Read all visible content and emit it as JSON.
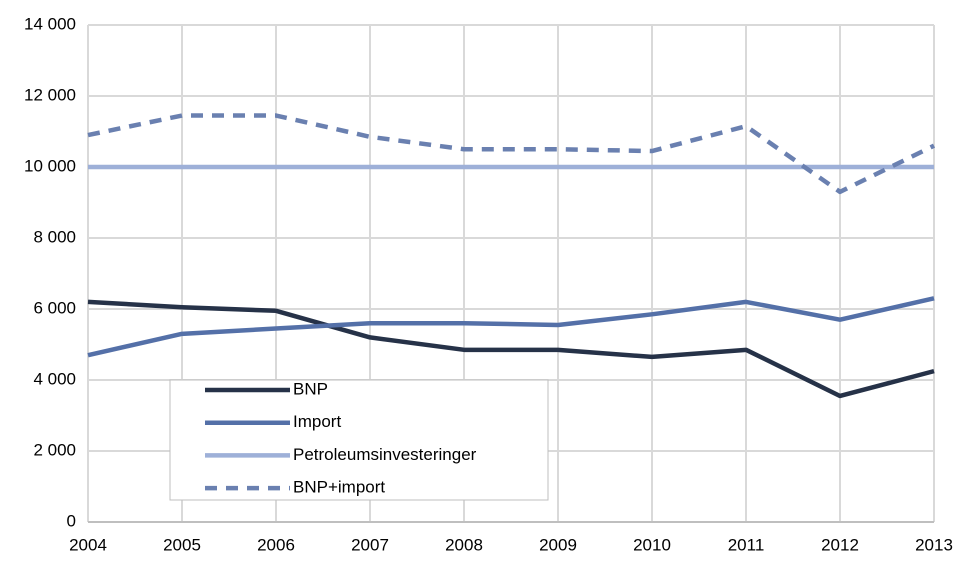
{
  "chart_data": {
    "type": "line",
    "categories": [
      "2004",
      "2005",
      "2006",
      "2007",
      "2008",
      "2009",
      "2010",
      "2011",
      "2012",
      "2013"
    ],
    "series": [
      {
        "name": "BNP",
        "color": "#263248",
        "values": [
          6200,
          6050,
          5950,
          5200,
          4850,
          4850,
          4650,
          4850,
          3550,
          4250
        ]
      },
      {
        "name": "Import",
        "color": "#5470a8",
        "values": [
          4700,
          5300,
          5450,
          5600,
          5600,
          5550,
          5850,
          6200,
          5700,
          6300
        ]
      },
      {
        "name": "Petroleumsinvesteringer",
        "color": "#9eb0d8",
        "values": [
          10000,
          10000,
          10000,
          10000,
          10000,
          10000,
          10000,
          10000,
          10000,
          10000
        ]
      },
      {
        "name": "BNP+import",
        "color": "#6a80b0",
        "dashed": true,
        "values": [
          10900,
          11450,
          11450,
          10850,
          10500,
          10500,
          10450,
          11150,
          9300,
          10600
        ]
      }
    ],
    "ylim": [
      0,
      14000
    ],
    "yticks": [
      0,
      {
        "value": 2000,
        "label": "2 000"
      },
      {
        "value": 4000,
        "label": "4 000"
      },
      {
        "value": 6000,
        "label": "6 000"
      },
      {
        "value": 8000,
        "label": "8 000"
      },
      {
        "value": 10000,
        "label": "10 000"
      },
      {
        "value": 12000,
        "label": "12 000"
      },
      {
        "value": 14000,
        "label": "14 000"
      }
    ],
    "grid": true,
    "legend": "lower-left"
  }
}
